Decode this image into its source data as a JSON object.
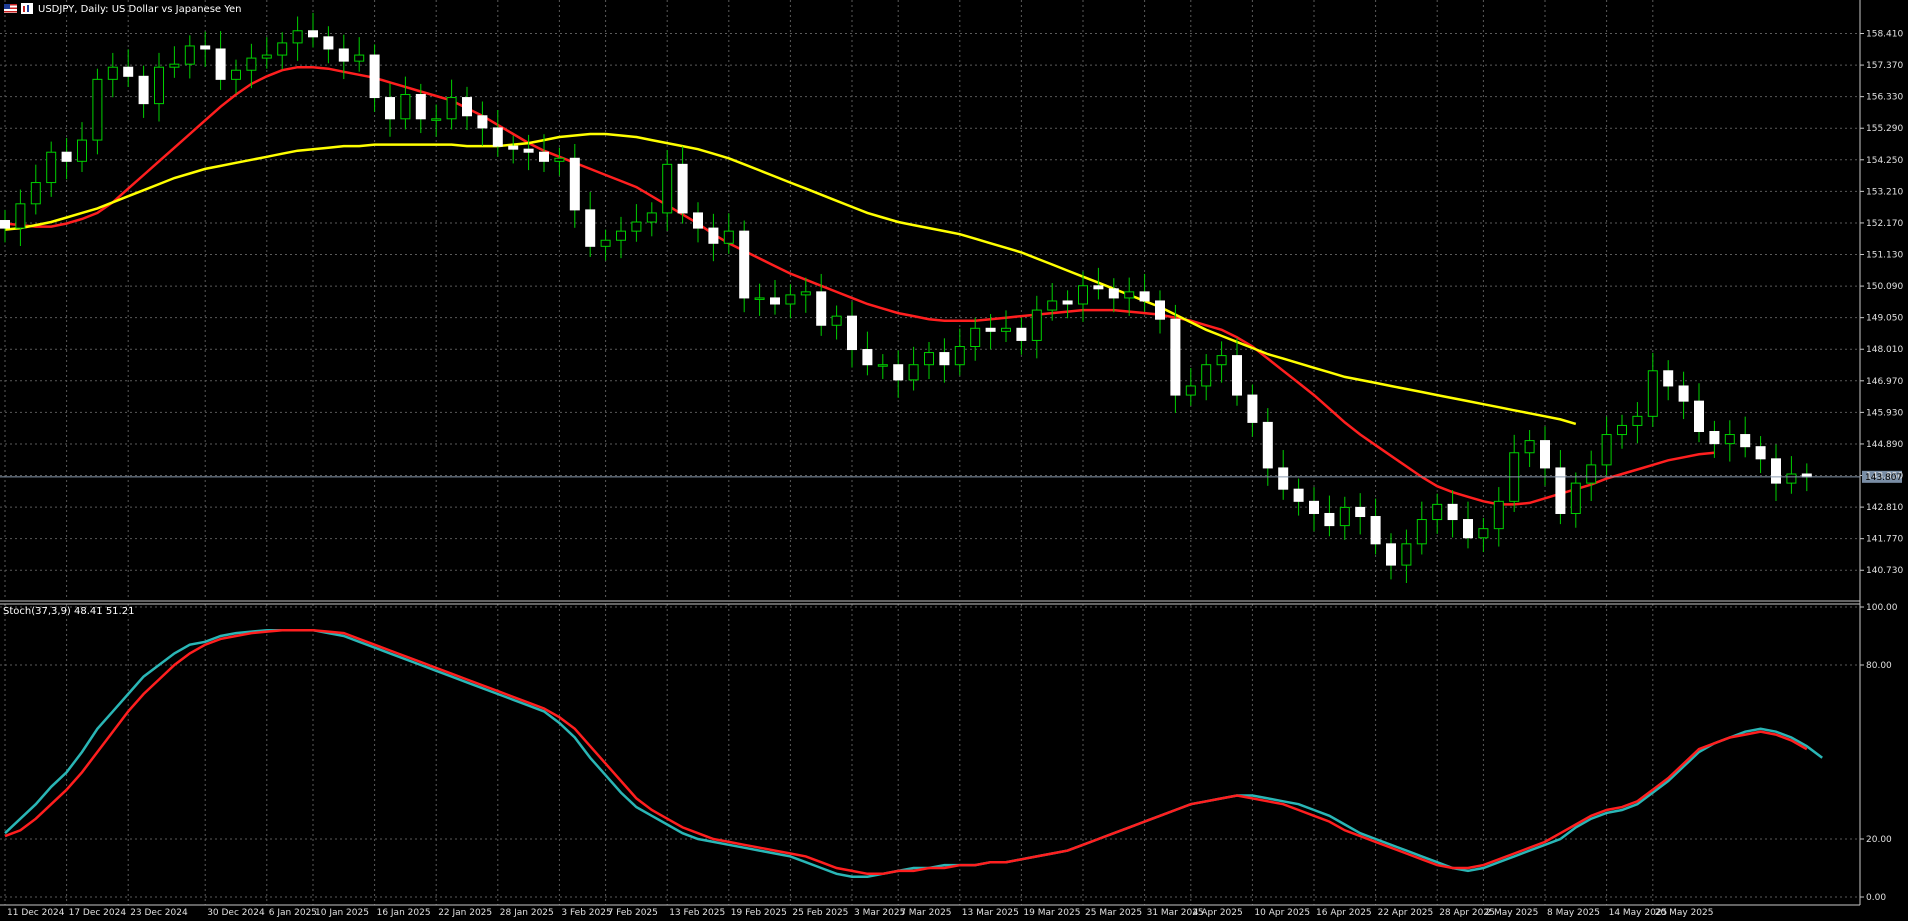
{
  "chart_data": [
    {
      "type": "candlestick",
      "title": "USDJPY, Daily:  US Dollar vs Japanese Yen",
      "price_axis": {
        "min": 139.75,
        "max": 159.25,
        "ticks": [
          "158.410",
          "157.370",
          "156.330",
          "155.290",
          "154.250",
          "153.210",
          "152.170",
          "151.130",
          "150.090",
          "149.050",
          "148.010",
          "146.970",
          "145.930",
          "144.890",
          "143.850",
          "142.810",
          "141.770",
          "140.730"
        ],
        "current_price": "143.807"
      },
      "x_labels": [
        "11 Dec 2024",
        "17 Dec 2024",
        "23 Dec 2024",
        "30 Dec 2024",
        "6 Jan 2025",
        "10 Jan 2025",
        "16 Jan 2025",
        "22 Jan 2025",
        "28 Jan 2025",
        "3 Feb 2025",
        "7 Feb 2025",
        "13 Feb 2025",
        "19 Feb 2025",
        "25 Feb 2025",
        "3 Mar 2025",
        "7 Mar 2025",
        "13 Mar 2025",
        "19 Mar 2025",
        "25 Mar 2025",
        "31 Mar 2025",
        "4 Apr 2025",
        "10 Apr 2025",
        "16 Apr 2025",
        "22 Apr 2025",
        "28 Apr 2025",
        "2 May 2025",
        "8 May 2025",
        "14 May 2025",
        "20 May 2025"
      ],
      "x_label_bar_index": [
        0,
        4,
        8,
        13,
        17,
        20,
        24,
        28,
        32,
        36,
        39,
        43,
        47,
        51,
        55,
        58,
        62,
        66,
        70,
        74,
        77,
        81,
        85,
        89,
        93,
        96,
        100,
        104,
        107
      ],
      "closes": [
        152.0,
        152.8,
        153.5,
        154.5,
        154.2,
        154.9,
        156.9,
        157.3,
        157.0,
        156.1,
        157.3,
        157.4,
        158.0,
        157.9,
        156.9,
        157.2,
        157.6,
        157.7,
        158.1,
        158.5,
        158.3,
        157.9,
        157.5,
        157.7,
        156.3,
        155.6,
        156.4,
        155.6,
        155.6,
        156.3,
        155.7,
        155.3,
        154.7,
        154.6,
        154.5,
        154.2,
        154.3,
        152.6,
        151.4,
        151.6,
        151.9,
        152.2,
        152.5,
        154.1,
        152.5,
        152.0,
        151.5,
        151.9,
        149.7,
        149.7,
        149.5,
        149.8,
        149.9,
        148.8,
        149.1,
        148.0,
        147.5,
        147.5,
        147.0,
        147.5,
        147.9,
        147.5,
        148.1,
        148.7,
        148.6,
        148.7,
        148.3,
        149.3,
        149.6,
        149.5,
        150.1,
        150.0,
        149.7,
        149.9,
        149.6,
        149.0,
        146.5,
        146.8,
        147.5,
        147.8,
        146.5,
        145.6,
        144.1,
        143.4,
        143.0,
        142.6,
        142.2,
        142.8,
        142.5,
        141.6,
        140.9,
        141.6,
        142.4,
        142.9,
        142.4,
        141.8,
        142.1,
        143.0,
        144.6,
        145.0,
        144.1,
        142.6,
        143.6,
        144.2,
        145.2,
        145.5,
        145.8,
        147.3,
        146.8,
        146.3,
        145.3,
        144.9,
        145.2,
        144.8,
        144.4,
        143.6,
        143.9,
        143.807
      ],
      "series": [
        {
          "name": "",
          "color": "#ff1f1f",
          "role": "moving-average-fast",
          "values": [
            152.15,
            152.1,
            152.05,
            152.05,
            152.15,
            152.3,
            152.5,
            152.85,
            153.3,
            153.75,
            154.2,
            154.65,
            155.1,
            155.55,
            156.0,
            156.4,
            156.75,
            157.0,
            157.2,
            157.3,
            157.3,
            157.25,
            157.15,
            157.05,
            156.95,
            156.8,
            156.65,
            156.5,
            156.35,
            156.2,
            155.95,
            155.7,
            155.4,
            155.1,
            154.8,
            154.55,
            154.35,
            154.15,
            153.95,
            153.75,
            153.55,
            153.35,
            153.05,
            152.75,
            152.45,
            152.15,
            151.8,
            151.5,
            151.25,
            151.0,
            150.75,
            150.5,
            150.3,
            150.1,
            149.9,
            149.7,
            149.5,
            149.35,
            149.2,
            149.1,
            149.0,
            148.95,
            148.95,
            148.95,
            149.0,
            149.05,
            149.1,
            149.15,
            149.2,
            149.25,
            149.3,
            149.3,
            149.3,
            149.25,
            149.2,
            149.15,
            149.05,
            148.95,
            148.8,
            148.65,
            148.4,
            148.1,
            147.7,
            147.3,
            146.9,
            146.5,
            146.05,
            145.6,
            145.2,
            144.85,
            144.5,
            144.15,
            143.8,
            143.5,
            143.3,
            143.15,
            143.0,
            142.9,
            142.9,
            142.95,
            143.1,
            143.25,
            143.4,
            143.55,
            143.75,
            143.9,
            144.05,
            144.2,
            144.35,
            144.45,
            144.55,
            144.6
          ]
        },
        {
          "name": "",
          "color": "#ffff00",
          "role": "moving-average-slow",
          "values": [
            151.95,
            152.0,
            152.1,
            152.2,
            152.35,
            152.5,
            152.65,
            152.85,
            153.05,
            153.25,
            153.45,
            153.65,
            153.8,
            153.95,
            154.05,
            154.15,
            154.25,
            154.35,
            154.45,
            154.55,
            154.6,
            154.65,
            154.7,
            154.7,
            154.75,
            154.75,
            154.75,
            154.75,
            154.75,
            154.75,
            154.7,
            154.7,
            154.7,
            154.75,
            154.8,
            154.9,
            155.0,
            155.05,
            155.1,
            155.1,
            155.05,
            155.0,
            154.9,
            154.8,
            154.7,
            154.6,
            154.45,
            154.3,
            154.1,
            153.9,
            153.7,
            153.5,
            153.3,
            153.1,
            152.9,
            152.7,
            152.5,
            152.35,
            152.2,
            152.1,
            152.0,
            151.9,
            151.8,
            151.65,
            151.5,
            151.35,
            151.2,
            151.0,
            150.8,
            150.6,
            150.4,
            150.2,
            150.0,
            149.8,
            149.6,
            149.4,
            149.15,
            148.9,
            148.65,
            148.45,
            148.25,
            148.05,
            147.85,
            147.7,
            147.55,
            147.4,
            147.25,
            147.1,
            147.0,
            146.9,
            146.8,
            146.7,
            146.6,
            146.5,
            146.4,
            146.3,
            146.2,
            146.1,
            146.0,
            145.9,
            145.8,
            145.7,
            145.55
          ]
        }
      ]
    },
    {
      "type": "line",
      "title": "Stoch(37,3,9) 48.41 51.21",
      "ylim": [
        0,
        100
      ],
      "y_ticks": [
        "100.00",
        "80.00",
        "20.00",
        "0.00"
      ],
      "series": [
        {
          "name": "",
          "color": "#2ab6b6",
          "values": [
            22,
            27,
            32,
            38,
            43,
            50,
            58,
            64,
            70,
            76,
            80,
            84,
            87,
            88,
            90,
            91,
            91.5,
            92,
            92,
            92,
            92,
            91,
            90,
            88,
            86,
            84,
            82,
            80,
            78,
            76,
            74,
            72,
            70,
            68,
            66,
            64,
            60,
            55,
            48,
            42,
            36,
            31,
            28,
            25,
            22,
            20,
            19,
            18,
            17,
            16,
            15,
            14,
            12,
            10,
            8,
            7,
            7,
            8,
            9,
            10,
            10,
            11,
            11,
            11,
            12,
            12,
            13,
            14,
            15,
            16,
            18,
            20,
            22,
            24,
            26,
            28,
            30,
            32,
            33,
            34,
            35,
            35,
            34,
            33,
            32,
            30,
            28,
            25,
            22,
            20,
            18,
            16,
            14,
            12,
            10,
            9,
            10,
            12,
            14,
            16,
            18,
            20,
            24,
            27,
            29,
            30,
            32,
            36,
            40,
            45,
            50,
            53,
            55,
            57,
            58,
            57,
            55,
            52,
            48
          ]
        },
        {
          "name": "",
          "color": "#ff1f1f",
          "values": [
            21,
            23,
            27,
            32,
            37,
            43,
            50,
            57,
            64,
            70,
            75,
            80,
            84,
            87,
            89,
            90,
            91,
            91.5,
            92,
            92,
            92,
            91.5,
            91,
            89,
            87,
            85,
            83,
            81,
            79,
            77,
            75,
            73,
            71,
            69,
            67,
            65,
            62,
            58,
            52,
            46,
            40,
            34,
            30,
            27,
            24,
            22,
            20,
            19,
            18,
            17,
            16,
            15,
            14,
            12,
            10,
            9,
            8,
            8,
            9,
            9,
            10,
            10,
            11,
            11,
            12,
            12,
            13,
            14,
            15,
            16,
            18,
            20,
            22,
            24,
            26,
            28,
            30,
            32,
            33,
            34,
            35,
            34,
            33,
            32,
            30,
            28,
            26,
            23,
            21,
            19,
            17,
            15,
            13,
            11,
            10,
            10,
            11,
            13,
            15,
            17,
            19,
            22,
            25,
            28,
            30,
            31,
            33,
            37,
            41,
            46,
            51,
            53,
            55,
            56,
            57,
            56,
            54,
            51
          ]
        }
      ]
    }
  ]
}
